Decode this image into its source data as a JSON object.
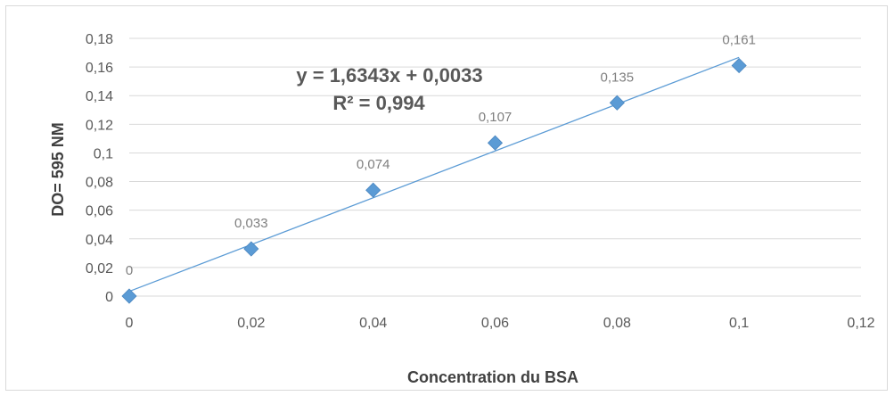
{
  "chart_data": {
    "type": "scatter",
    "xlabel": "Concentration du BSA",
    "ylabel": "DO= 595 NM",
    "xlim": [
      0,
      0.12
    ],
    "ylim": [
      0,
      0.18
    ],
    "x_ticks": [
      "0",
      "0,02",
      "0,04",
      "0,06",
      "0,08",
      "0,1",
      "0,12"
    ],
    "y_ticks": [
      "0",
      "0,02",
      "0,04",
      "0,06",
      "0,08",
      "0,1",
      "0,12",
      "0,14",
      "0,16",
      "0,18"
    ],
    "grid": "horizontal",
    "series": [
      {
        "x": [
          0,
          0.02,
          0.04,
          0.06,
          0.08,
          0.1
        ],
        "y": [
          0,
          0.033,
          0.074,
          0.107,
          0.135,
          0.161
        ],
        "labels": [
          "0",
          "0,033",
          "0,074",
          "0,107",
          "0,135",
          "0,161"
        ],
        "marker": "diamond",
        "color": "#5b9bd5"
      }
    ],
    "trendline": {
      "type": "linear",
      "slope": 1.6343,
      "intercept": 0.0033,
      "equation": "y = 1,6343x + 0,0033",
      "r2": "R² = 0,994",
      "color": "#5b9bd5"
    }
  }
}
